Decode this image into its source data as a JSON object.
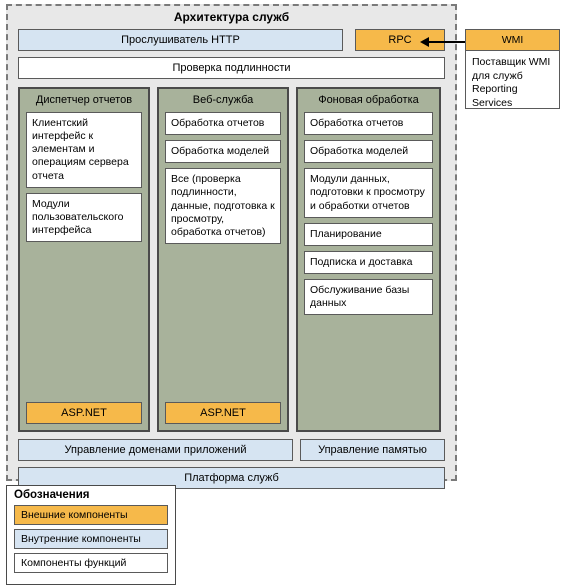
{
  "colors": {
    "external": "#f6b94a",
    "internal": "#d6e4f2",
    "functional": "#ffffff",
    "column_bg": "#a8b29b",
    "container_bg": "#e8e8e8",
    "border": "#5a5a5a"
  },
  "arch": {
    "title": "Архитектура служб",
    "http_listener": "Прослушиватель HTTP",
    "rpc": "RPC",
    "auth": "Проверка подлинности",
    "app_domain": "Управление доменами приложений",
    "mem_mgmt": "Управление памятью",
    "platform": "Платформа служб"
  },
  "col1": {
    "title": "Диспетчер отчетов",
    "box1": "Клиентский интерфейс к элементам и операциям сервера отчета",
    "box2": "Модули пользовательского интерфейса",
    "aspnet": "ASP.NET"
  },
  "col2": {
    "title": "Веб-служба",
    "box1": "Обработка отчетов",
    "box2": "Обработка моделей",
    "box3": "Все (проверка подлинности, данные, подготовка к просмотру, обработка отчетов)",
    "aspnet": "ASP.NET"
  },
  "col3": {
    "title": "Фоновая обработка",
    "box1": "Обработка отчетов",
    "box2": "Обработка моделей",
    "box3": "Модули данных, подготовки к просмотру и обработки отчетов",
    "box4": "Планирование",
    "box5": "Подписка и доставка",
    "box6": "Обслуживание базы данных"
  },
  "wmi": {
    "header": "WMI",
    "body": "Поставщик WMI для служб Reporting Services"
  },
  "legend": {
    "title": "Обозначения",
    "external": "Внешние компоненты",
    "internal": "Внутренние компоненты",
    "functional": "Компоненты функций"
  }
}
